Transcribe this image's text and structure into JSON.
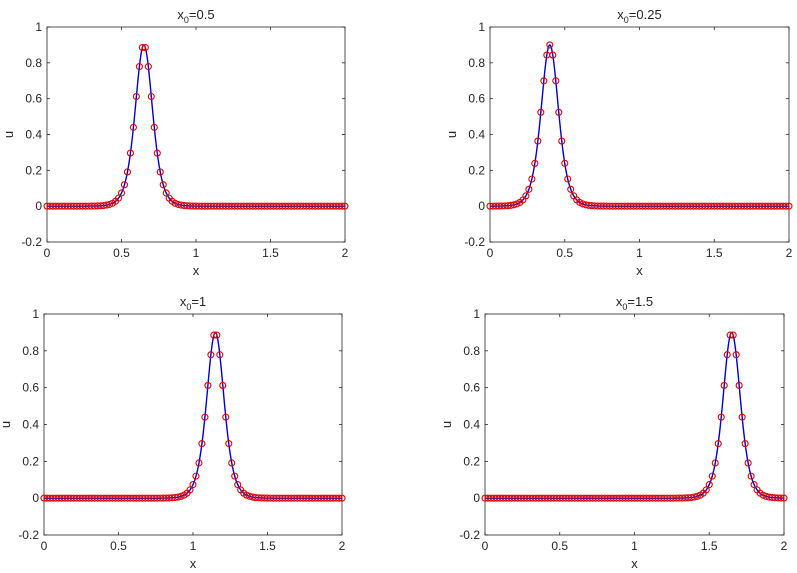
{
  "chart_data": [
    {
      "type": "line",
      "title_main": "x",
      "title_sub": "0",
      "title_suffix": "=0.5",
      "xlabel": "x",
      "ylabel": "u",
      "xlim": [
        0,
        2
      ],
      "ylim": [
        -0.2,
        1
      ],
      "xticks": [
        "0",
        "0.5",
        "1",
        "1.5",
        "2"
      ],
      "yticks": [
        "-0.2",
        "0",
        "0.2",
        "0.4",
        "0.6",
        "0.8",
        "1"
      ],
      "peak_x": 0.65,
      "peak_u": 0.9,
      "width": 0.078,
      "x_step": 0.02,
      "series": [
        {
          "kind": "exact",
          "color": "#0000cc"
        },
        {
          "kind": "numerical",
          "color": "#e00000"
        }
      ],
      "grid": false
    },
    {
      "type": "line",
      "title_main": "x",
      "title_sub": "0",
      "title_suffix": "=0.25",
      "xlabel": "x",
      "ylabel": "u",
      "xlim": [
        0,
        2
      ],
      "ylim": [
        -0.2,
        1
      ],
      "xticks": [
        "0",
        "0.5",
        "1",
        "1.5",
        "2"
      ],
      "yticks": [
        "-0.2",
        "0",
        "0.2",
        "0.4",
        "0.6",
        "0.8",
        "1"
      ],
      "peak_x": 0.4,
      "peak_u": 0.9,
      "width": 0.078,
      "x_step": 0.02,
      "series": [
        {
          "kind": "exact",
          "color": "#0000cc"
        },
        {
          "kind": "numerical",
          "color": "#e00000"
        }
      ],
      "grid": false
    },
    {
      "type": "line",
      "title_main": "x",
      "title_sub": "0",
      "title_suffix": "=1",
      "xlabel": "x",
      "ylabel": "u",
      "xlim": [
        0,
        2
      ],
      "ylim": [
        -0.2,
        1
      ],
      "xticks": [
        "0",
        "0.5",
        "1",
        "1.5",
        "2"
      ],
      "yticks": [
        "-0.2",
        "0",
        "0.2",
        "0.4",
        "0.6",
        "0.8",
        "1"
      ],
      "peak_x": 1.15,
      "peak_u": 0.9,
      "width": 0.078,
      "x_step": 0.02,
      "series": [
        {
          "kind": "exact",
          "color": "#0000cc"
        },
        {
          "kind": "numerical",
          "color": "#e00000"
        }
      ],
      "grid": false
    },
    {
      "type": "line",
      "title_main": "x",
      "title_sub": "0",
      "title_suffix": "=1.5",
      "xlabel": "x",
      "ylabel": "u",
      "xlim": [
        0,
        2
      ],
      "ylim": [
        -0.2,
        1
      ],
      "xticks": [
        "0",
        "0.5",
        "1",
        "1.5",
        "2"
      ],
      "yticks": [
        "-0.2",
        "0",
        "0.2",
        "0.4",
        "0.6",
        "0.8",
        "1"
      ],
      "peak_x": 1.65,
      "peak_u": 0.9,
      "width": 0.078,
      "x_step": 0.02,
      "series": [
        {
          "kind": "exact",
          "color": "#0000cc"
        },
        {
          "kind": "numerical",
          "color": "#e00000"
        }
      ],
      "grid": false
    }
  ]
}
